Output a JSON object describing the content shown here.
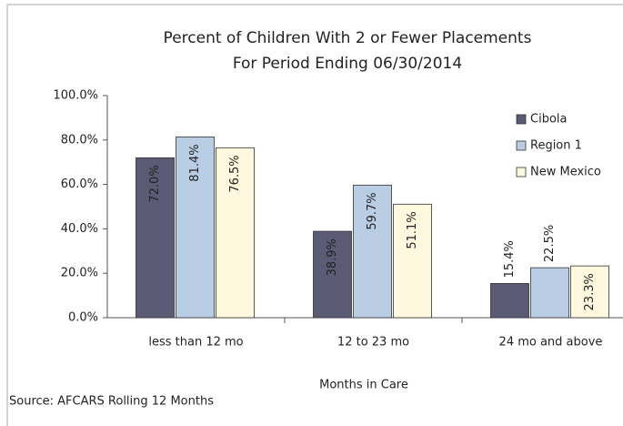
{
  "chart_data": {
    "type": "bar",
    "title": "Percent of Children With 2 or Fewer Placements",
    "subtitle": "For Period Ending 06/30/2014",
    "x_label": "Months in Care",
    "source": "Source: AFCARS  Rolling 12 Months",
    "categories": [
      "less than 12 mo",
      "12 to 23 mo",
      "24 mo and above"
    ],
    "series": [
      {
        "name": "Cibola",
        "color": "#5b5b76",
        "values": [
          72.0,
          38.9,
          15.4
        ],
        "value_labels": [
          "72.0%",
          "38.9%",
          "15.4%"
        ]
      },
      {
        "name": "Region 1",
        "color": "#b9cde5",
        "values": [
          81.4,
          59.7,
          22.5
        ],
        "value_labels": [
          "81.4%",
          "59.7%",
          "22.5%"
        ]
      },
      {
        "name": "New Mexico",
        "color": "#fdf8de",
        "values": [
          76.5,
          51.1,
          23.3
        ],
        "value_labels": [
          "76.5%",
          "51.1%",
          "23.3%"
        ]
      }
    ],
    "ylim": [
      0,
      100
    ],
    "yticks": [
      {
        "value": 0,
        "label": "0.0%"
      },
      {
        "value": 20,
        "label": "20.0%"
      },
      {
        "value": 40,
        "label": "40.0%"
      },
      {
        "value": 60,
        "label": "60.0%"
      },
      {
        "value": 80,
        "label": "80.0%"
      },
      {
        "value": 100,
        "label": "100.0%"
      }
    ],
    "legend": "right"
  }
}
